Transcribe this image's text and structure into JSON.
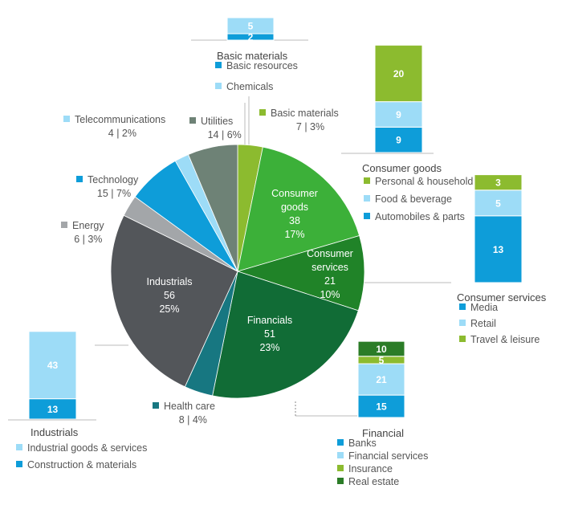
{
  "colors": {
    "consumer_goods": "#3cb039",
    "consumer_services": "#208328",
    "financials": "#116c36",
    "health_care": "#177781",
    "industrials": "#53565a",
    "energy": "#a3a6a9",
    "technology": "#0e9dd9",
    "telecommunications": "#9ddcf7",
    "utilities": "#6e8276",
    "basic_materials": "#8cbb2f",
    "dark_blue": "#0e9dd9",
    "light_blue": "#9ddcf7",
    "lime": "#8cbb2f",
    "dark_green": "#2b7c27"
  },
  "chart_data": [
    {
      "type": "pie",
      "title": "",
      "slices": [
        {
          "name": "Basic materials",
          "value": 7,
          "pct": "3%",
          "color_key": "basic_materials"
        },
        {
          "name": "Consumer goods",
          "value": 38,
          "pct": "17%",
          "color_key": "consumer_goods"
        },
        {
          "name": "Consumer services",
          "value": 21,
          "pct": "10%",
          "color_key": "consumer_services"
        },
        {
          "name": "Financials",
          "value": 51,
          "pct": "23%",
          "color_key": "financials"
        },
        {
          "name": "Health care",
          "value": 8,
          "pct": "4%",
          "color_key": "health_care"
        },
        {
          "name": "Industrials",
          "value": 56,
          "pct": "25%",
          "color_key": "industrials"
        },
        {
          "name": "Energy",
          "value": 6,
          "pct": "3%",
          "color_key": "energy"
        },
        {
          "name": "Technology",
          "value": 15,
          "pct": "7%",
          "color_key": "technology"
        },
        {
          "name": "Telecommunications",
          "value": 4,
          "pct": "2%",
          "color_key": "telecommunications"
        },
        {
          "name": "Utilities",
          "value": 14,
          "pct": "6%",
          "color_key": "utilities"
        }
      ],
      "inside_labels": [
        {
          "lines": [
            "Consumer",
            "goods",
            "38",
            "17%"
          ]
        },
        {
          "lines": [
            "Consumer",
            "services",
            "21",
            "10%"
          ]
        },
        {
          "lines": [
            "Financials",
            "51",
            "23%"
          ]
        },
        {
          "lines": [
            "Industrials",
            "56",
            "25%"
          ]
        }
      ],
      "outside_labels": [
        {
          "name": "Basic materials",
          "stat": "7 | 3%",
          "color_key": "basic_materials"
        },
        {
          "name": "Utilities",
          "stat": "14 | 6%",
          "color_key": "utilities"
        },
        {
          "name": "Telecommunications",
          "stat": "4 | 2%",
          "color_key": "telecommunications"
        },
        {
          "name": "Technology",
          "stat": "15 | 7%",
          "color_key": "technology"
        },
        {
          "name": "Energy",
          "stat": "6 | 3%",
          "color_key": "energy"
        },
        {
          "name": "Health care",
          "stat": "8 | 4%",
          "color_key": "health_care"
        }
      ]
    },
    {
      "type": "bar",
      "stacked": true,
      "title": "Basic materials",
      "series": [
        {
          "name": "Basic resources",
          "value": 2,
          "color_key": "dark_blue"
        },
        {
          "name": "Chemicals",
          "value": 5,
          "color_key": "light_blue"
        }
      ]
    },
    {
      "type": "bar",
      "stacked": true,
      "title": "Consumer goods",
      "series": [
        {
          "name": "Personal & household goods",
          "value": 20,
          "color_key": "lime"
        },
        {
          "name": "Food & beverage",
          "value": 9,
          "color_key": "light_blue"
        },
        {
          "name": "Automobiles & parts",
          "value": 9,
          "color_key": "dark_blue"
        }
      ]
    },
    {
      "type": "bar",
      "stacked": true,
      "title": "Consumer services",
      "series": [
        {
          "name": "Media",
          "value": 13,
          "color_key": "dark_blue"
        },
        {
          "name": "Retail",
          "value": 5,
          "color_key": "light_blue"
        },
        {
          "name": "Travel & leisure",
          "value": 3,
          "color_key": "lime"
        }
      ]
    },
    {
      "type": "bar",
      "stacked": true,
      "title": "Financial",
      "series": [
        {
          "name": "Banks",
          "value": 15,
          "color_key": "dark_blue"
        },
        {
          "name": "Financial services",
          "value": 21,
          "color_key": "light_blue"
        },
        {
          "name": "Insurance",
          "value": 5,
          "color_key": "lime"
        },
        {
          "name": "Real estate",
          "value": 10,
          "color_key": "dark_green"
        }
      ]
    },
    {
      "type": "bar",
      "stacked": true,
      "title": "Industrials",
      "series": [
        {
          "name": "Industrial goods & services",
          "value": 43,
          "color_key": "light_blue"
        },
        {
          "name": "Construction & materials",
          "value": 13,
          "color_key": "dark_blue"
        }
      ]
    }
  ]
}
